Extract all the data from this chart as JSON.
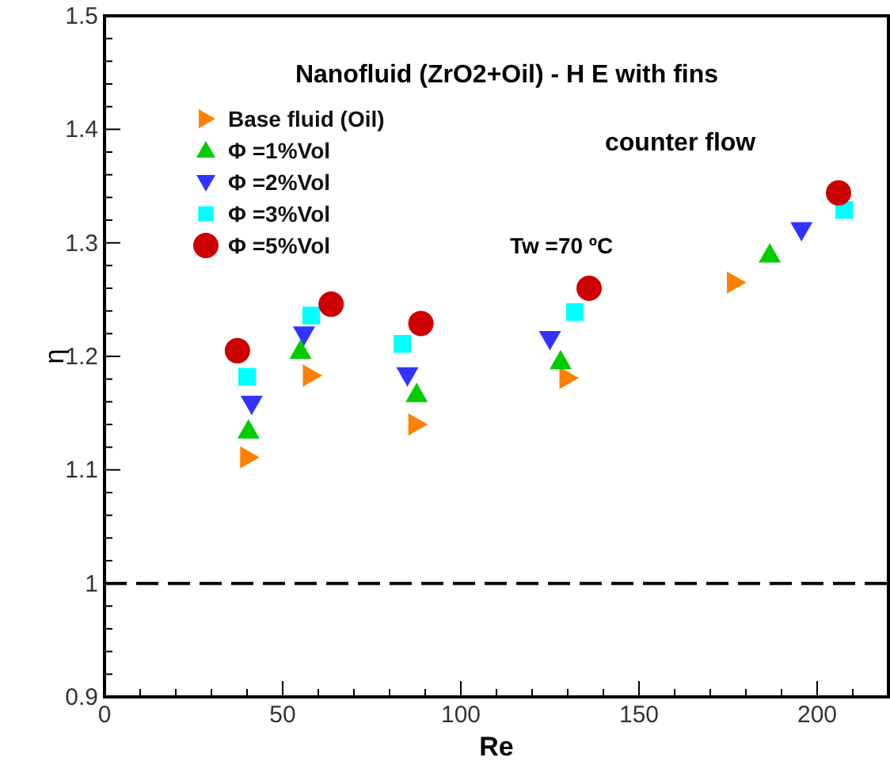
{
  "chart_data": {
    "type": "scatter",
    "title": "Nanofluid (ZrO2+Oil) - H  E with fins",
    "xlabel": "Re",
    "ylabel": "η",
    "annotations": [
      "counter  flow",
      "Tw =70 ºC"
    ],
    "xlim": [
      0,
      220
    ],
    "ylim": [
      0.9,
      1.5
    ],
    "xticks": [
      0,
      {
        "value": 10,
        "label": null
      },
      {
        "value": 20,
        "label": null
      },
      {
        "value": 30,
        "label": null
      },
      {
        "value": 40,
        "label": null
      },
      50,
      {
        "value": 60,
        "label": null
      },
      {
        "value": 70,
        "label": null
      },
      {
        "value": 80,
        "label": null
      },
      {
        "value": 90,
        "label": null
      },
      100,
      {
        "value": 110,
        "label": null
      },
      {
        "value": 120,
        "label": null
      },
      {
        "value": 130,
        "label": null
      },
      {
        "value": 140,
        "label": null
      },
      150,
      {
        "value": 160,
        "label": null
      },
      {
        "value": 170,
        "label": null
      },
      {
        "value": 180,
        "label": null
      },
      {
        "value": 190,
        "label": null
      },
      200,
      {
        "value": 210,
        "label": null
      }
    ],
    "yticks": [
      0.9,
      {
        "value": 0.92,
        "label": null
      },
      {
        "value": 0.94,
        "label": null
      },
      {
        "value": 0.96,
        "label": null
      },
      {
        "value": 0.98,
        "label": null
      },
      1,
      {
        "value": 1.02,
        "label": null
      },
      {
        "value": 1.04,
        "label": null
      },
      {
        "value": 1.06,
        "label": null
      },
      {
        "value": 1.08,
        "label": null
      },
      1.1,
      {
        "value": 1.12,
        "label": null
      },
      {
        "value": 1.14,
        "label": null
      },
      {
        "value": 1.16,
        "label": null
      },
      {
        "value": 1.18,
        "label": null
      },
      1.2,
      {
        "value": 1.22,
        "label": null
      },
      {
        "value": 1.24,
        "label": null
      },
      {
        "value": 1.26,
        "label": null
      },
      {
        "value": 1.28,
        "label": null
      },
      1.3,
      {
        "value": 1.32,
        "label": null
      },
      {
        "value": 1.34,
        "label": null
      },
      {
        "value": 1.36,
        "label": null
      },
      {
        "value": 1.38,
        "label": null
      },
      1.4,
      {
        "value": 1.42,
        "label": null
      },
      {
        "value": 1.44,
        "label": null
      },
      {
        "value": 1.46,
        "label": null
      },
      {
        "value": 1.48,
        "label": null
      },
      1.5
    ],
    "grid": false,
    "legend": "top left",
    "ref_lines": [
      {
        "axis": "y",
        "value": 1,
        "line_style": "dashed",
        "color": "#000000"
      }
    ],
    "series": [
      {
        "name": "Base fluid (Oil)",
        "color": "#ff8000",
        "marker": "triangle-right",
        "x": [
          40.4,
          58,
          87.6,
          130,
          177
        ],
        "values": [
          1.111,
          1.183,
          1.14,
          1.181,
          1.265
        ]
      },
      {
        "name": "Φ =1%Vol",
        "color": "#00cc00",
        "marker": "triangle",
        "x": [
          40.4,
          55,
          87.6,
          128,
          186.7
        ],
        "values": [
          1.135,
          1.205,
          1.167,
          1.196,
          1.29
        ]
      },
      {
        "name": "Φ =2%Vol",
        "color": "#3333ff",
        "marker": "triangle-down",
        "x": [
          41.3,
          56,
          85,
          125,
          195.6
        ],
        "values": [
          1.158,
          1.219,
          1.183,
          1.215,
          1.311
        ]
      },
      {
        "name": "Φ =3%Vol",
        "color": "#00ffff",
        "marker": "square",
        "x": [
          40,
          58,
          83.6,
          132,
          207.6
        ],
        "values": [
          1.182,
          1.236,
          1.211,
          1.239,
          1.329
        ]
      },
      {
        "name": "Φ =5%Vol",
        "color": "#cc0000",
        "marker": "circle",
        "x": [
          37.3,
          63.6,
          88.8,
          136,
          206
        ],
        "values": [
          1.205,
          1.246,
          1.229,
          1.26,
          1.344
        ]
      }
    ]
  }
}
